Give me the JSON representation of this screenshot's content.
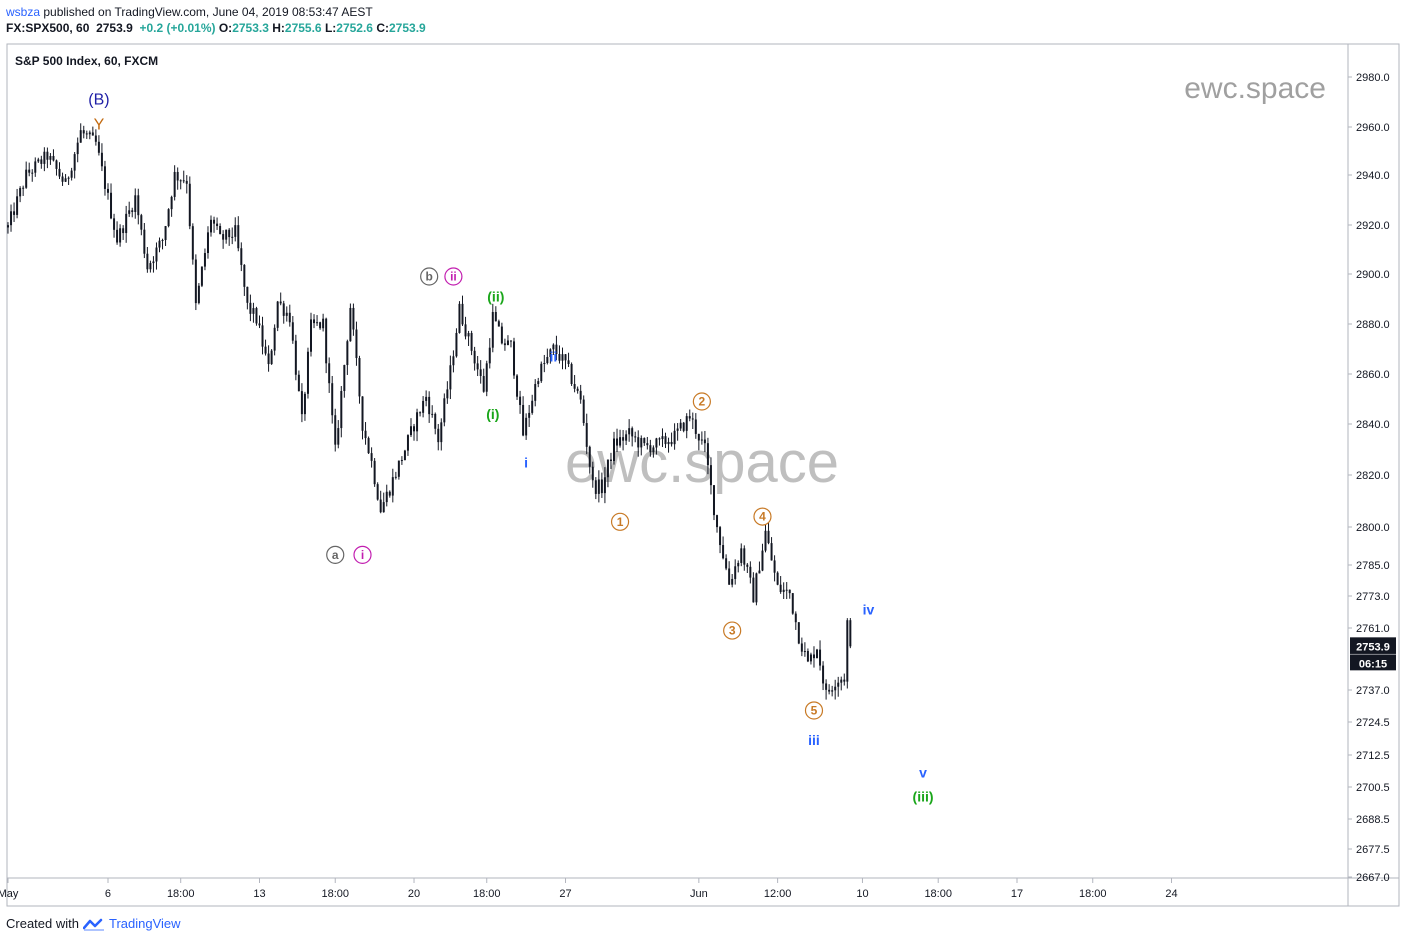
{
  "header": {
    "user": "wsbza",
    "published_text": " published on TradingView.com, June 04, 2019 08:53:47 AEST",
    "symbol": "FX:SPX500, 60",
    "last": "2753.9",
    "change": "+0.2 (+0.01%)",
    "o_label": "O:",
    "o_value": "2753.3",
    "h_label": "H:",
    "h_value": "2755.6",
    "l_label": "L:",
    "l_value": "2752.6",
    "c_label": "C:",
    "c_value": "2753.9"
  },
  "chart_title": "S&P 500 Index, 60, FXCM",
  "watermark_small": "ewc.space",
  "watermark_large": "ewc.space",
  "price_badge": {
    "value": "2753.9",
    "countdown": "06:15",
    "color": "#131722"
  },
  "footer": {
    "created_with": "Created with",
    "brand": "TradingView",
    "brand_color": "#2962ff"
  },
  "colors": {
    "candle": "#131722",
    "axis_text": "#131722",
    "wave_blue": "#2962ff",
    "wave_green": "#1aa61a",
    "wave_orange": "#c87a26",
    "wave_magenta": "#c21fb0",
    "wave_gray": "#666666",
    "wave_navy": "#1f1fa6",
    "wave_brown": "#c26a10"
  },
  "chart_data": {
    "type": "candlestick",
    "title": "S&P 500 Index, 60, FXCM",
    "y_scale": "log",
    "y_ticks": [
      2980.0,
      2960.0,
      2940.0,
      2920.0,
      2900.0,
      2880.0,
      2860.0,
      2840.0,
      2820.0,
      2800.0,
      2785.0,
      2773.0,
      2761.0,
      2737.0,
      2724.5,
      2712.5,
      2700.5,
      2688.5,
      2677.5,
      2667.0
    ],
    "y_tick_labels": [
      "2980.0",
      "2960.0",
      "2940.0",
      "2920.0",
      "2900.0",
      "2880.0",
      "2860.0",
      "2840.0",
      "2820.0",
      "2800.0",
      "2785.0",
      "2773.0",
      "2761.0",
      "2737.0",
      "2724.5",
      "2712.5",
      "2700.5",
      "2688.5",
      "2677.5",
      "2667.0"
    ],
    "x_tick_labels": [
      "May",
      "6",
      "18:00",
      "13",
      "18:00",
      "20",
      "18:00",
      "27",
      "Jun",
      "12:00",
      "10",
      "18:00",
      "17",
      "18:00",
      "24"
    ],
    "x_tick_index": [
      0,
      33,
      57,
      83,
      108,
      134,
      158,
      184,
      228,
      254,
      282,
      307,
      333,
      358,
      384
    ],
    "current_price": 2753.9,
    "path": [
      [
        0,
        2919
      ],
      [
        6,
        2940
      ],
      [
        13,
        2948
      ],
      [
        19,
        2936
      ],
      [
        24,
        2958
      ],
      [
        29,
        2953
      ],
      [
        36,
        2914
      ],
      [
        42,
        2931
      ],
      [
        46,
        2903
      ],
      [
        51,
        2914
      ],
      [
        55,
        2940
      ],
      [
        59,
        2938
      ],
      [
        62,
        2887
      ],
      [
        67,
        2923
      ],
      [
        70,
        2914
      ],
      [
        75,
        2917
      ],
      [
        79,
        2887
      ],
      [
        82,
        2882
      ],
      [
        86,
        2862
      ],
      [
        89,
        2889
      ],
      [
        93,
        2883
      ],
      [
        97,
        2841
      ],
      [
        100,
        2879
      ],
      [
        104,
        2880
      ],
      [
        108,
        2829
      ],
      [
        113,
        2887
      ],
      [
        117,
        2840
      ],
      [
        120,
        2825
      ],
      [
        123,
        2807
      ],
      [
        126,
        2815
      ],
      [
        131,
        2830
      ],
      [
        135,
        2843
      ],
      [
        138,
        2851
      ],
      [
        142,
        2834
      ],
      [
        146,
        2861
      ],
      [
        149,
        2886
      ],
      [
        153,
        2870
      ],
      [
        157,
        2854
      ],
      [
        160,
        2883
      ],
      [
        163,
        2873
      ],
      [
        166,
        2871
      ],
      [
        170,
        2836
      ],
      [
        175,
        2860
      ],
      [
        180,
        2870
      ],
      [
        184,
        2864
      ],
      [
        189,
        2849
      ],
      [
        193,
        2816
      ],
      [
        196,
        2815
      ],
      [
        200,
        2832
      ],
      [
        205,
        2836
      ],
      [
        210,
        2831
      ],
      [
        215,
        2832
      ],
      [
        220,
        2835
      ],
      [
        225,
        2843
      ],
      [
        230,
        2830
      ],
      [
        234,
        2800
      ],
      [
        238,
        2778
      ],
      [
        242,
        2791
      ],
      [
        246,
        2773
      ],
      [
        250,
        2798
      ],
      [
        254,
        2776
      ],
      [
        258,
        2774
      ],
      [
        261,
        2758
      ],
      [
        264,
        2747
      ],
      [
        267,
        2754
      ],
      [
        270,
        2735
      ],
      [
        273,
        2741
      ],
      [
        276,
        2742
      ],
      [
        277,
        2763
      ],
      [
        278,
        2753.9
      ]
    ],
    "wave_labels": [
      {
        "text": "(B)",
        "x": 30,
        "price": 2971,
        "color": "navy",
        "shape": "text"
      },
      {
        "text": "Y",
        "x": 30,
        "price": 2961,
        "color": "brown",
        "shape": "text"
      },
      {
        "text": "a",
        "x": 108,
        "price": 2789,
        "color": "gray",
        "shape": "circle"
      },
      {
        "text": "i",
        "x": 117,
        "price": 2789,
        "color": "magenta",
        "shape": "circle"
      },
      {
        "text": "b",
        "x": 139,
        "price": 2899,
        "color": "gray",
        "shape": "circle"
      },
      {
        "text": "ii",
        "x": 147,
        "price": 2899,
        "color": "magenta",
        "shape": "circle"
      },
      {
        "text": "(ii)",
        "x": 161,
        "price": 2891,
        "color": "green",
        "shape": "text"
      },
      {
        "text": "(i)",
        "x": 160,
        "price": 2844,
        "color": "green",
        "shape": "text"
      },
      {
        "text": "ii",
        "x": 180,
        "price": 2867,
        "color": "blue",
        "shape": "text"
      },
      {
        "text": "i",
        "x": 171,
        "price": 2825,
        "color": "blue",
        "shape": "text"
      },
      {
        "text": "1",
        "x": 202,
        "price": 2802,
        "color": "orange",
        "shape": "circle"
      },
      {
        "text": "2",
        "x": 229,
        "price": 2849,
        "color": "orange",
        "shape": "circle"
      },
      {
        "text": "3",
        "x": 239,
        "price": 2760,
        "color": "orange",
        "shape": "circle"
      },
      {
        "text": "4",
        "x": 249,
        "price": 2804,
        "color": "orange",
        "shape": "circle"
      },
      {
        "text": "5",
        "x": 266,
        "price": 2729,
        "color": "orange",
        "shape": "circle"
      },
      {
        "text": "iii",
        "x": 266,
        "price": 2718,
        "color": "blue",
        "shape": "text"
      },
      {
        "text": "iv",
        "x": 284,
        "price": 2768,
        "color": "blue",
        "shape": "text"
      },
      {
        "text": "v",
        "x": 302,
        "price": 2706,
        "color": "blue",
        "shape": "text"
      },
      {
        "text": "(iii)",
        "x": 302,
        "price": 2697,
        "color": "green",
        "shape": "text"
      }
    ]
  }
}
